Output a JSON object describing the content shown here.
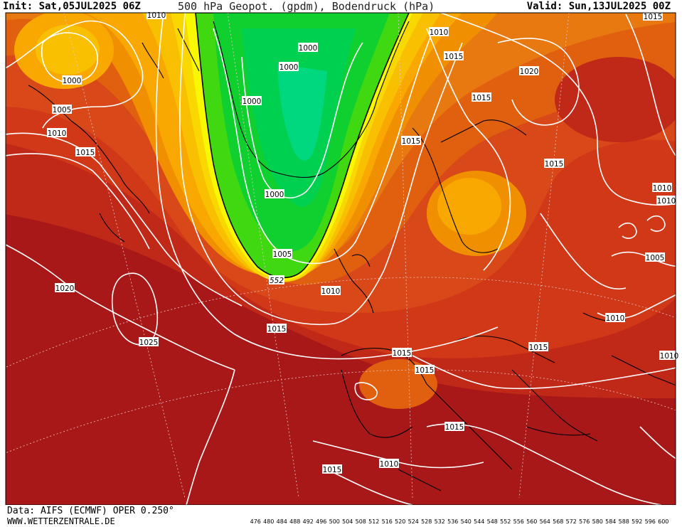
{
  "header": {
    "init": "Init: Sat,05JUL2025 06Z",
    "title": "500 hPa Geopot. (gpdm), Bodendruck (hPa)",
    "valid": "Valid: Sun,13JUL2025 00Z"
  },
  "footer": {
    "data_source": "Data: AIFS (ECMWF) OPER 0.250°",
    "website": "WWW.WETTERZENTRALE.DE"
  },
  "colors": {
    "background_field": "#c7311c",
    "low_heights": "#10d030",
    "isobar": "#ffffff"
  },
  "isobar_labels": [
    {
      "id": "l1",
      "text": "1010"
    },
    {
      "id": "l2",
      "text": "1000"
    },
    {
      "id": "l3",
      "text": "1000"
    },
    {
      "id": "l4",
      "text": "1010"
    },
    {
      "id": "l5",
      "text": "1015"
    },
    {
      "id": "l6",
      "text": "1015"
    },
    {
      "id": "l7",
      "text": "1000"
    },
    {
      "id": "l8",
      "text": "1005"
    },
    {
      "id": "l9",
      "text": "1010"
    },
    {
      "id": "l10",
      "text": "1015"
    },
    {
      "id": "l11",
      "text": "1000"
    },
    {
      "id": "l12",
      "text": "1020"
    },
    {
      "id": "l13",
      "text": "1015"
    },
    {
      "id": "l14",
      "text": "1015"
    },
    {
      "id": "l15",
      "text": "1000"
    },
    {
      "id": "l16",
      "text": "1015"
    },
    {
      "id": "l17",
      "text": "1010"
    },
    {
      "id": "l18",
      "text": "1010"
    },
    {
      "id": "l19",
      "text": "1005"
    },
    {
      "id": "l20",
      "text": "552"
    },
    {
      "id": "l21",
      "text": "1010"
    },
    {
      "id": "l22",
      "text": "1020"
    },
    {
      "id": "l23",
      "text": "1005"
    },
    {
      "id": "l24",
      "text": "1015"
    },
    {
      "id": "l25",
      "text": "1025"
    },
    {
      "id": "l26",
      "text": "1010"
    },
    {
      "id": "l27",
      "text": "1015"
    },
    {
      "id": "l28",
      "text": "1015"
    },
    {
      "id": "l29",
      "text": "1015"
    },
    {
      "id": "l30",
      "text": "1010"
    },
    {
      "id": "l31",
      "text": "1015"
    },
    {
      "id": "l32",
      "text": "1015"
    },
    {
      "id": "l33",
      "text": "1010"
    },
    {
      "id": "l34",
      "text": "1010"
    }
  ],
  "color_scale": {
    "labels": [
      "476",
      "480",
      "484",
      "488",
      "492",
      "496",
      "500",
      "504",
      "508",
      "512",
      "516",
      "520",
      "524",
      "528",
      "532",
      "536",
      "540",
      "544",
      "548",
      "552",
      "556",
      "560",
      "564",
      "568",
      "572",
      "576",
      "580",
      "584",
      "588",
      "592",
      "596",
      "600"
    ],
    "colors": [
      "#4a0a52",
      "#6e0a7a",
      "#9a0aa8",
      "#c40ac8",
      "#e00ae0",
      "#b00af0",
      "#8010f0",
      "#5010f0",
      "#2020f0",
      "#0840f8",
      "#0070f8",
      "#00a0f8",
      "#00c8f8",
      "#00e8e8",
      "#00e0b0",
      "#00d880",
      "#00d050",
      "#10d030",
      "#40d810",
      "#f8f800",
      "#f8d800",
      "#f8c000",
      "#f8a800",
      "#f09000",
      "#e87810",
      "#e06010",
      "#d84818",
      "#d03818",
      "#c02818",
      "#a81818",
      "#b01848",
      "#d01080"
    ]
  }
}
